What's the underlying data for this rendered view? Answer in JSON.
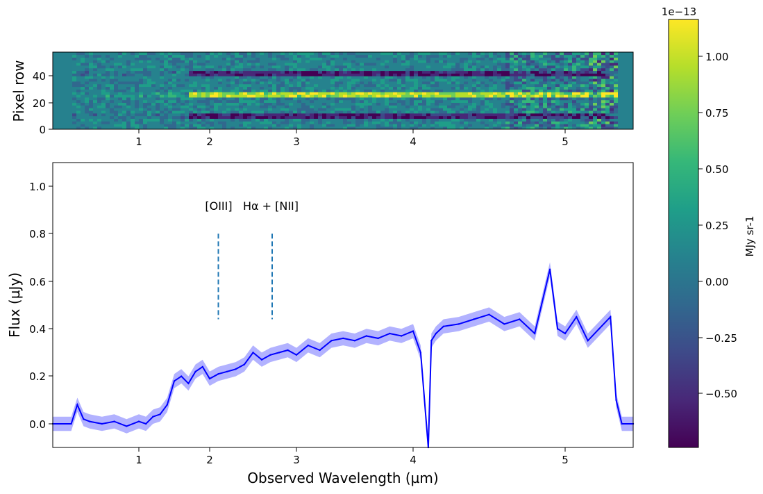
{
  "chart_data": [
    {
      "type": "heatmap",
      "panel": "2D spectrum",
      "ylabel": "Pixel row",
      "ylim": [
        0,
        58
      ],
      "yticks": [
        "0",
        "20",
        "40"
      ],
      "xticks": [
        "1",
        "2",
        "3",
        "4",
        "5"
      ],
      "trace_rows": [
        {
          "row": 42,
          "sign": "negative",
          "start_um": 1.7
        },
        {
          "row": 26,
          "sign": "positive",
          "start_um": 1.7
        },
        {
          "row": 10,
          "sign": "negative",
          "start_um": 1.7
        }
      ],
      "detector_gap_um": 4.1
    },
    {
      "type": "line",
      "panel": "1D spectrum",
      "xlabel": "Observed Wavelength (µm)",
      "ylabel": "Flux (µJy)",
      "xlim": [
        0.3,
        5.6
      ],
      "ylim": [
        -0.1,
        1.1
      ],
      "xticks": [
        "1",
        "2",
        "3",
        "4",
        "5"
      ],
      "yticks": [
        "0.0",
        "0.2",
        "0.4",
        "0.6",
        "0.8",
        "1.0"
      ],
      "series": [
        {
          "name": "flux",
          "color": "#0000ff",
          "x": [
            0.3,
            0.45,
            0.5,
            0.55,
            0.6,
            0.7,
            0.8,
            0.9,
            1.0,
            1.1,
            1.2,
            1.3,
            1.4,
            1.5,
            1.6,
            1.7,
            1.8,
            1.9,
            2.0,
            2.1,
            2.2,
            2.3,
            2.4,
            2.5,
            2.6,
            2.7,
            2.8,
            2.9,
            3.0,
            3.1,
            3.2,
            3.3,
            3.4,
            3.5,
            3.6,
            3.7,
            3.8,
            3.9,
            4.0,
            4.05,
            4.1,
            4.12,
            4.15,
            4.2,
            4.3,
            4.4,
            4.5,
            4.6,
            4.7,
            4.8,
            4.9,
            4.95,
            5.0,
            5.1,
            5.2,
            5.3,
            5.4,
            5.45,
            5.5,
            5.6
          ],
          "values": [
            0.0,
            0.0,
            0.08,
            0.02,
            0.01,
            0.0,
            0.01,
            -0.01,
            0.01,
            0.0,
            0.03,
            0.04,
            0.08,
            0.18,
            0.2,
            0.17,
            0.22,
            0.24,
            0.19,
            0.21,
            0.22,
            0.23,
            0.25,
            0.3,
            0.27,
            0.29,
            0.3,
            0.31,
            0.29,
            0.33,
            0.31,
            0.35,
            0.36,
            0.35,
            0.37,
            0.36,
            0.38,
            0.37,
            0.39,
            0.3,
            -0.1,
            0.35,
            0.38,
            0.41,
            0.42,
            0.44,
            0.46,
            0.42,
            0.44,
            0.38,
            0.65,
            0.4,
            0.38,
            0.45,
            0.35,
            0.4,
            0.45,
            0.1,
            0.0,
            0.0
          ],
          "error_band": 0.03
        }
      ],
      "annotations": [
        {
          "label": "[OIII]",
          "x": 2.1,
          "y_range": [
            0.44,
            0.8
          ]
        },
        {
          "label": "Hα + [NII]",
          "x": 2.72,
          "y_range": [
            0.44,
            0.8
          ]
        }
      ]
    },
    {
      "type": "colorbar",
      "label": "MJy sr-1",
      "scale_label": "1e−13",
      "ticks": [
        "1.00",
        "0.75",
        "0.50",
        "0.25",
        "0.00",
        "−0.25",
        "−0.50"
      ],
      "range": [
        -0.72,
        1.17
      ],
      "colormap": [
        "#440154",
        "#482878",
        "#3e4a89",
        "#31688e",
        "#26828e",
        "#1f9e89",
        "#35b779",
        "#6ece58",
        "#b5de2b",
        "#fde725"
      ]
    }
  ]
}
